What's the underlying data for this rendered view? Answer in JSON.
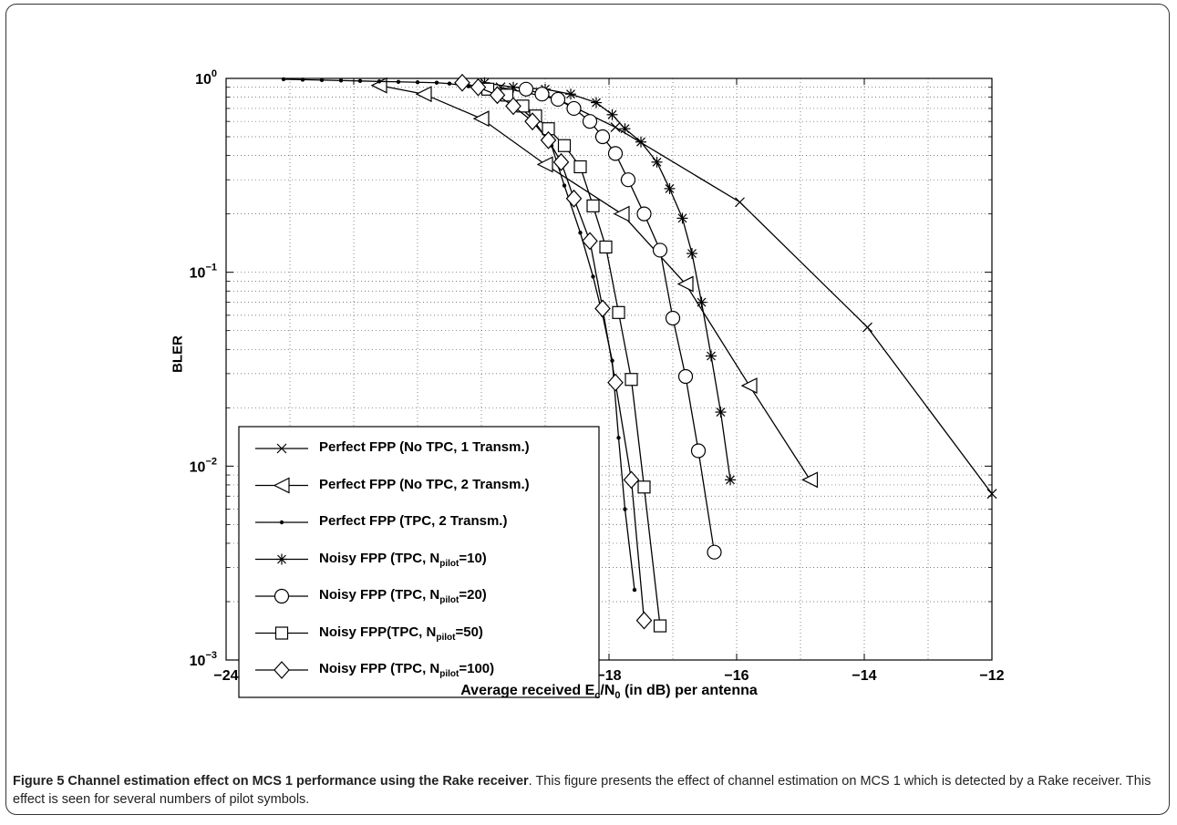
{
  "caption": {
    "figure_label": "Figure 5 Channel estimation effect on MCS 1 performance using the Rake receiver",
    "text": ". This figure presents the effect of channel estimation on MCS 1 which is detected by a Rake receiver. This effect is seen for several numbers of pilot symbols."
  },
  "chart_data": {
    "type": "line",
    "xlabel_parts": [
      "Average received E",
      "c",
      "/N",
      "0",
      " (in dB) per antenna"
    ],
    "ylabel": "BLER",
    "xlim": [
      -24,
      -12
    ],
    "ylim": [
      0.001,
      1
    ],
    "y_scale": "log",
    "grid": true,
    "legend_position": "bottom-left",
    "x_ticks": [
      "−24",
      "−22",
      "−20",
      "−18",
      "−16",
      "−14",
      "−12"
    ],
    "y_ticks": [
      {
        "base": "10",
        "exp": "0"
      },
      {
        "base": "10",
        "exp": "−1"
      },
      {
        "base": "10",
        "exp": "−2"
      },
      {
        "base": "10",
        "exp": "−3"
      }
    ],
    "series": [
      {
        "name_parts": [
          "Perfect FPP (No TPC, 1 Transm.)"
        ],
        "marker": "x",
        "points": [
          [
            -19.7,
            0.9
          ],
          [
            -18.8,
            0.78
          ],
          [
            -17.9,
            0.56
          ],
          [
            -15.95,
            0.23
          ],
          [
            -13.95,
            0.052
          ],
          [
            -12,
            0.0072
          ]
        ]
      },
      {
        "name_parts": [
          "Perfect FPP (No TPC, 2 Transm.)"
        ],
        "marker": "triangle-left",
        "points": [
          [
            -21.6,
            0.92
          ],
          [
            -20.9,
            0.83
          ],
          [
            -20.0,
            0.62
          ],
          [
            -19.0,
            0.36
          ],
          [
            -17.8,
            0.2
          ],
          [
            -16.8,
            0.087
          ],
          [
            -15.8,
            0.026
          ],
          [
            -14.85,
            0.0085
          ]
        ]
      },
      {
        "name_parts": [
          "Perfect FPP (TPC, 2 Transm.)"
        ],
        "marker": "dot",
        "points": [
          [
            -23.1,
            0.99
          ],
          [
            -22.8,
            0.985
          ],
          [
            -22.5,
            0.98
          ],
          [
            -22.2,
            0.975
          ],
          [
            -21.9,
            0.97
          ],
          [
            -21.6,
            0.965
          ],
          [
            -21.3,
            0.96
          ],
          [
            -21.0,
            0.955
          ],
          [
            -20.7,
            0.95
          ],
          [
            -20.5,
            0.94
          ],
          [
            -20.2,
            0.91
          ],
          [
            -19.8,
            0.85
          ],
          [
            -19.5,
            0.76
          ],
          [
            -19.2,
            0.62
          ],
          [
            -18.9,
            0.45
          ],
          [
            -18.7,
            0.28
          ],
          [
            -18.45,
            0.16
          ],
          [
            -18.25,
            0.095
          ],
          [
            -18.1,
            0.06
          ],
          [
            -17.95,
            0.035
          ],
          [
            -17.85,
            0.014
          ],
          [
            -17.75,
            0.006
          ],
          [
            -17.6,
            0.0023
          ]
        ]
      },
      {
        "name_parts": [
          "Noisy FPP (TPC, N",
          "pilot",
          "=10)"
        ],
        "marker": "asterisk",
        "points": [
          [
            -19.95,
            0.95
          ],
          [
            -19.5,
            0.9
          ],
          [
            -19.0,
            0.88
          ],
          [
            -18.6,
            0.83
          ],
          [
            -18.2,
            0.75
          ],
          [
            -17.95,
            0.65
          ],
          [
            -17.75,
            0.55
          ],
          [
            -17.5,
            0.47
          ],
          [
            -17.25,
            0.37
          ],
          [
            -17.05,
            0.27
          ],
          [
            -16.85,
            0.19
          ],
          [
            -16.7,
            0.125
          ],
          [
            -16.55,
            0.07
          ],
          [
            -16.4,
            0.037
          ],
          [
            -16.25,
            0.019
          ],
          [
            -16.1,
            0.0085
          ]
        ]
      },
      {
        "name_parts": [
          "Noisy FPP (TPC, N",
          "pilot",
          "=20)"
        ],
        "marker": "circle",
        "points": [
          [
            -19.3,
            0.88
          ],
          [
            -19.05,
            0.83
          ],
          [
            -18.8,
            0.78
          ],
          [
            -18.55,
            0.7
          ],
          [
            -18.3,
            0.6
          ],
          [
            -18.1,
            0.5
          ],
          [
            -17.9,
            0.41
          ],
          [
            -17.7,
            0.3
          ],
          [
            -17.45,
            0.2
          ],
          [
            -17.2,
            0.13
          ],
          [
            -17.0,
            0.058
          ],
          [
            -16.8,
            0.029
          ],
          [
            -16.6,
            0.012
          ],
          [
            -16.35,
            0.0036
          ]
        ]
      },
      {
        "name_parts": [
          "Noisy FPP(TPC, N",
          "pilot",
          "=50)"
        ],
        "marker": "square",
        "points": [
          [
            -19.9,
            0.88
          ],
          [
            -19.6,
            0.82
          ],
          [
            -19.35,
            0.72
          ],
          [
            -19.15,
            0.64
          ],
          [
            -18.95,
            0.55
          ],
          [
            -18.7,
            0.45
          ],
          [
            -18.45,
            0.35
          ],
          [
            -18.25,
            0.22
          ],
          [
            -18.05,
            0.135
          ],
          [
            -17.85,
            0.062
          ],
          [
            -17.65,
            0.028
          ],
          [
            -17.45,
            0.0078
          ],
          [
            -17.2,
            0.0015
          ]
        ]
      },
      {
        "name_parts": [
          "Noisy FPP (TPC, N",
          "pilot",
          "=100)"
        ],
        "marker": "diamond",
        "points": [
          [
            -20.3,
            0.95
          ],
          [
            -20.05,
            0.9
          ],
          [
            -19.75,
            0.82
          ],
          [
            -19.5,
            0.72
          ],
          [
            -19.2,
            0.6
          ],
          [
            -18.95,
            0.48
          ],
          [
            -18.75,
            0.37
          ],
          [
            -18.55,
            0.24
          ],
          [
            -18.3,
            0.145
          ],
          [
            -18.1,
            0.065
          ],
          [
            -17.9,
            0.027
          ],
          [
            -17.65,
            0.0085
          ],
          [
            -17.45,
            0.0016
          ]
        ]
      }
    ]
  }
}
